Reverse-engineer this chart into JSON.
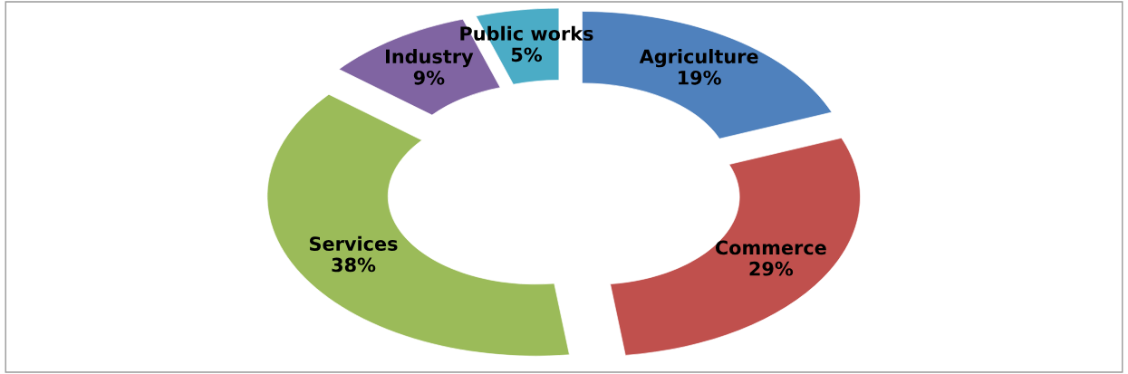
{
  "chart_data": {
    "type": "donut",
    "categories": [
      "Agriculture",
      "Commerce",
      "Services",
      "Industry",
      "Public works"
    ],
    "values": [
      19,
      29,
      38,
      9,
      5
    ],
    "value_labels": [
      "19%",
      "29%",
      "38%",
      "9%",
      "5%"
    ],
    "colors": [
      "#4f81bd",
      "#c0504d",
      "#9bbb59",
      "#8064a2",
      "#4bacc6"
    ],
    "legend": false
  }
}
